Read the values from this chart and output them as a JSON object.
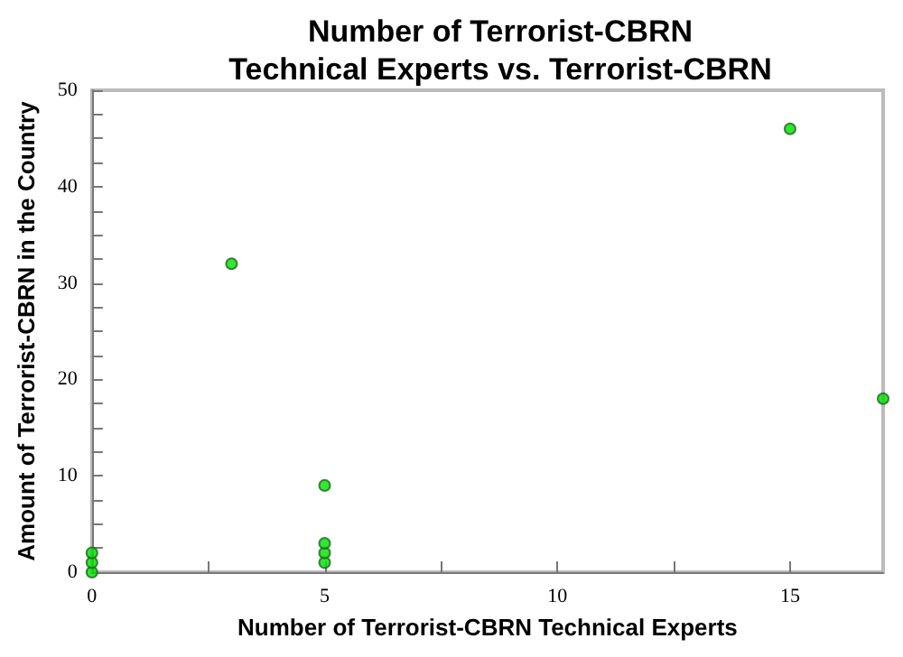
{
  "chart_data": {
    "type": "scatter",
    "title": "Number of Terrorist-CBRN\nTechnical Experts vs. Terrorist-CBRN",
    "xlabel": "Number of Terrorist-CBRN Technical Experts",
    "ylabel": "Amount of Terrorist-CBRN in the Country",
    "x": [
      0,
      0,
      0,
      3,
      5,
      5,
      5,
      5,
      15,
      17
    ],
    "series": [
      {
        "color": "#00e000",
        "values": [
          0,
          1,
          2,
          32,
          1,
          2,
          3,
          9,
          46,
          18
        ]
      }
    ],
    "xlim": [
      0,
      17
    ],
    "ylim": [
      0,
      50
    ],
    "xticks": [
      0,
      {
        "value": 2.5,
        "label": null
      },
      5,
      {
        "value": 7.5,
        "label": null
      },
      10,
      {
        "value": 12.5,
        "label": null
      },
      15
    ],
    "yticks": [
      0,
      {
        "value": 2.5,
        "label": null
      },
      {
        "value": 5,
        "label": null
      },
      {
        "value": 7.5,
        "label": null
      },
      10,
      {
        "value": 12.5,
        "label": null
      },
      {
        "value": 15,
        "label": null
      },
      {
        "value": 17.5,
        "label": null
      },
      20,
      {
        "value": 22.5,
        "label": null
      },
      {
        "value": 25,
        "label": null
      },
      {
        "value": 27.5,
        "label": null
      },
      30,
      {
        "value": 32.5,
        "label": null
      },
      {
        "value": 35,
        "label": null
      },
      {
        "value": 37.5,
        "label": null
      },
      40,
      {
        "value": 42.5,
        "label": null
      },
      {
        "value": 45,
        "label": null
      },
      {
        "value": 47.5,
        "label": null
      },
      50
    ],
    "marker": "circle",
    "grid": false
  }
}
